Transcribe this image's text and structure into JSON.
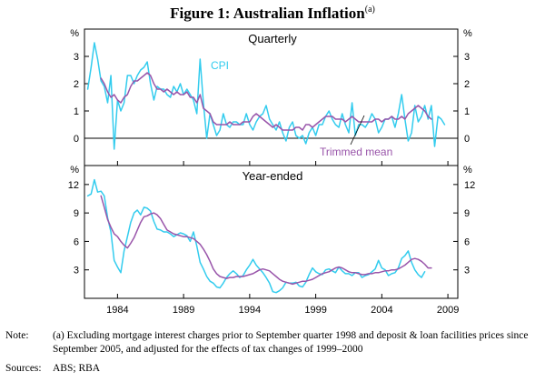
{
  "figure": {
    "title": "Figure 1: Australian Inflation",
    "title_superscript": "(a)",
    "note_label": "Note:",
    "note_text": "(a) Excluding mortgage interest charges prior to September quarter 1998 and deposit & loan facilities prices since September 2005, and adjusted for the effects of tax changes of 1999–2000",
    "sources_label": "Sources:",
    "sources_text": "ABS; RBA"
  },
  "colors": {
    "cpi": "#33ccee",
    "trimmed": "#9955aa",
    "zero_line": "#000000"
  },
  "chart_data": [
    {
      "type": "line",
      "title": "Quarterly",
      "unit_label": "%",
      "ylim": [
        -1,
        4
      ],
      "yticks": [
        0,
        1,
        2,
        3
      ],
      "xlim": [
        1981.5,
        2009.75
      ],
      "xticks": [
        1984,
        1989,
        1994,
        1999,
        2004,
        2009
      ],
      "labels": {
        "cpi": "CPI",
        "trimmed": "Trimmed mean"
      },
      "series": [
        {
          "name": "CPI",
          "start": 1981.75,
          "step": 0.25,
          "values": [
            1.8,
            2.6,
            3.5,
            2.9,
            2.1,
            1.9,
            1.3,
            2.3,
            -0.4,
            1.4,
            1.0,
            1.3,
            2.3,
            2.3,
            2.0,
            2.3,
            2.5,
            2.6,
            2.8,
            2.0,
            1.4,
            1.9,
            1.8,
            1.8,
            1.6,
            1.5,
            1.9,
            1.7,
            2.0,
            1.6,
            1.8,
            1.6,
            1.4,
            0.9,
            2.9,
            1.3,
            0.0,
            0.9,
            0.5,
            0.1,
            0.3,
            0.9,
            0.5,
            0.4,
            0.6,
            0.6,
            0.5,
            0.5,
            0.9,
            0.5,
            0.3,
            0.6,
            0.8,
            0.9,
            1.2,
            0.7,
            0.5,
            0.3,
            0.6,
            0.2,
            -0.1,
            0.4,
            0.6,
            0.1,
            0.0,
            0.1,
            -0.2,
            0.2,
            0.4,
            0.1,
            0.5,
            0.5,
            0.8,
            1.0,
            0.7,
            0.5,
            0.4,
            0.9,
            0.5,
            0.2,
            1.3,
            0.1,
            0.5,
            0.5,
            0.4,
            0.6,
            0.9,
            0.7,
            0.2,
            0.4,
            0.7,
            0.7,
            0.8,
            0.4,
            0.9,
            1.6,
            0.7,
            -0.1,
            0.2,
            1.2,
            0.6,
            0.8,
            1.2,
            0.7,
            1.2,
            -0.3,
            0.8,
            0.7,
            0.5
          ],
          "color": "#33ccee"
        },
        {
          "name": "Trimmed mean",
          "start": 1982.75,
          "step": 0.25,
          "values": [
            2.2,
            2.0,
            1.7,
            1.5,
            1.6,
            1.4,
            1.3,
            1.5,
            1.6,
            1.9,
            2.1,
            2.1,
            2.2,
            2.3,
            2.4,
            2.3,
            2.0,
            1.8,
            1.8,
            1.7,
            1.8,
            1.7,
            1.6,
            1.7,
            1.6,
            1.6,
            1.7,
            1.5,
            1.5,
            1.3,
            1.6,
            1.1,
            1.0,
            0.9,
            0.6,
            0.5,
            0.5,
            0.5,
            0.5,
            0.6,
            0.5,
            0.5,
            0.5,
            0.6,
            0.6,
            0.6,
            0.8,
            0.9,
            0.8,
            0.7,
            0.6,
            0.5,
            0.4,
            0.5,
            0.4,
            0.3,
            0.3,
            0.3,
            0.3,
            0.4,
            0.4,
            0.3,
            0.5,
            0.5,
            0.4,
            0.5,
            0.6,
            0.7,
            0.8,
            0.8,
            0.8,
            0.7,
            0.7,
            0.7,
            0.6,
            0.7,
            0.8,
            0.7,
            0.6,
            0.6,
            0.6,
            0.6,
            0.6,
            0.7,
            0.7,
            0.6,
            0.7,
            0.7,
            0.8,
            0.7,
            0.7,
            0.8,
            0.7,
            0.9,
            1.0,
            1.1,
            1.2,
            1.1,
            1.0,
            0.8,
            0.7
          ],
          "color": "#9955aa"
        }
      ]
    },
    {
      "type": "line",
      "title": "Year-ended",
      "unit_label": "%",
      "ylim": [
        0,
        14
      ],
      "yticks": [
        3,
        6,
        9,
        12
      ],
      "xlim": [
        1981.5,
        2009.75
      ],
      "xticks": [
        1984,
        1989,
        1994,
        1999,
        2004,
        2009
      ],
      "xtick_labels": [
        "1984",
        "1989",
        "1994",
        "1999",
        "2004",
        "2009"
      ],
      "series": [
        {
          "name": "CPI",
          "start": 1981.75,
          "step": 0.25,
          "values": [
            10.8,
            11.0,
            12.5,
            11.2,
            11.3,
            10.8,
            8.5,
            7.0,
            4.0,
            3.3,
            2.7,
            5.0,
            6.5,
            8.0,
            9.0,
            9.3,
            8.8,
            9.6,
            9.5,
            9.2,
            8.1,
            7.3,
            7.2,
            7.0,
            7.0,
            6.8,
            6.5,
            6.7,
            6.9,
            6.8,
            6.6,
            6.0,
            7.0,
            5.5,
            3.8,
            3.1,
            2.3,
            1.8,
            1.6,
            1.2,
            1.1,
            1.6,
            2.2,
            2.6,
            2.9,
            2.6,
            2.2,
            2.4,
            3.0,
            3.5,
            4.1,
            3.5,
            3.1,
            2.7,
            2.2,
            1.6,
            0.7,
            0.6,
            0.8,
            1.1,
            1.7,
            1.6,
            1.6,
            1.7,
            1.3,
            1.2,
            1.7,
            2.5,
            3.2,
            2.8,
            2.6,
            2.5,
            3.0,
            3.1,
            2.9,
            2.7,
            3.3,
            2.9,
            2.6,
            2.6,
            2.4,
            2.7,
            2.7,
            2.2,
            2.4,
            2.5,
            2.8,
            3.1,
            4.0,
            3.2,
            3.0,
            2.4,
            2.6,
            2.7,
            3.2,
            4.2,
            4.5,
            5.0,
            3.8,
            3.0,
            2.5,
            2.2,
            2.8
          ],
          "color": "#33ccee"
        },
        {
          "name": "Trimmed mean",
          "start": 1982.75,
          "step": 0.25,
          "values": [
            10.8,
            9.6,
            8.3,
            7.5,
            6.8,
            6.5,
            6.0,
            5.6,
            5.3,
            5.8,
            6.4,
            7.2,
            8.0,
            8.6,
            8.7,
            8.9,
            9.0,
            8.8,
            8.4,
            7.8,
            7.2,
            7.0,
            6.8,
            6.7,
            6.6,
            6.5,
            6.5,
            6.4,
            6.3,
            6.0,
            5.7,
            5.2,
            4.6,
            3.9,
            3.1,
            2.6,
            2.3,
            2.2,
            2.1,
            2.2,
            2.2,
            2.3,
            2.3,
            2.3,
            2.4,
            2.5,
            2.6,
            2.8,
            3.0,
            3.1,
            3.0,
            2.9,
            2.6,
            2.3,
            2.0,
            1.8,
            1.7,
            1.6,
            1.5,
            1.6,
            1.7,
            1.8,
            1.8,
            1.9,
            2.0,
            2.2,
            2.4,
            2.6,
            2.7,
            2.8,
            3.0,
            3.2,
            3.3,
            3.2,
            3.0,
            2.8,
            2.7,
            2.7,
            2.6,
            2.5,
            2.5,
            2.6,
            2.6,
            2.7,
            2.7,
            2.8,
            2.9,
            2.9,
            3.0,
            3.0,
            3.1,
            3.3,
            3.5,
            3.8,
            4.1,
            4.2,
            4.1,
            3.9,
            3.6,
            3.2,
            3.2
          ]
        }
      ]
    }
  ]
}
